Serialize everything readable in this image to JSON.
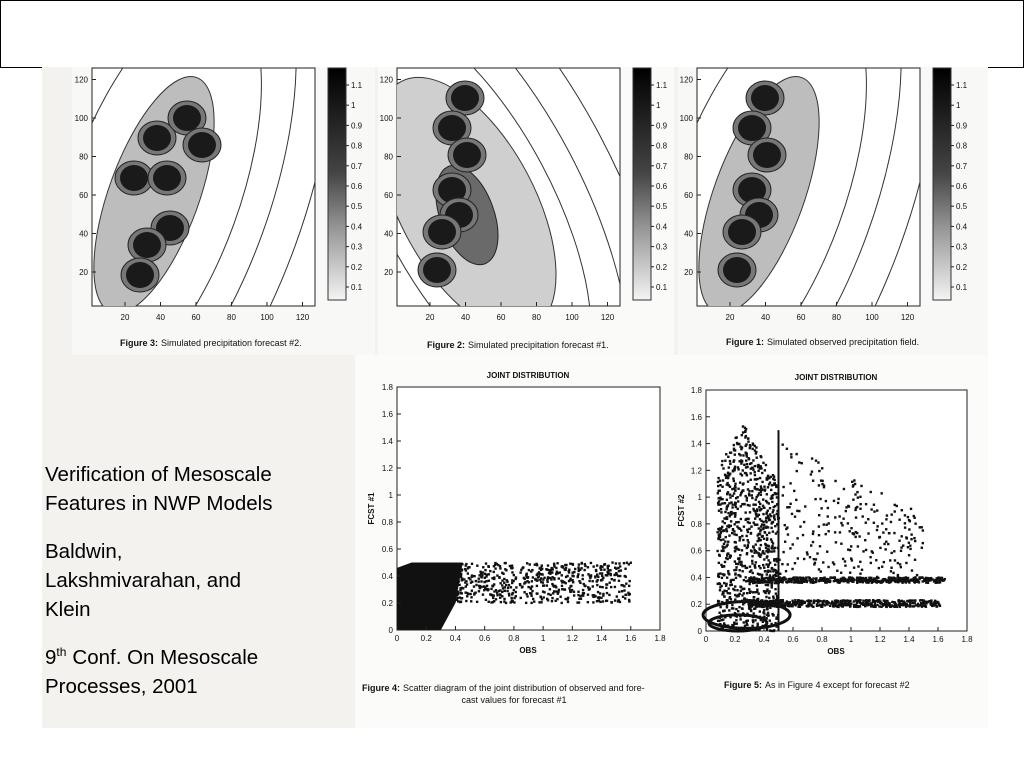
{
  "slide": {
    "title_lines": [
      "Verification of Mesoscale",
      "Features in NWP Models"
    ],
    "authors_lines": [
      "Baldwin,",
      "Lakshmivarahan, and",
      "Klein"
    ],
    "conference": {
      "number": "9",
      "superscript": "th",
      "first_line": "Conf. On Mesoscale",
      "second_line": "Processes, 2001"
    }
  },
  "contour_figures": [
    {
      "label": "Figure 3:",
      "caption": "Simulated precipitation forecast #2.",
      "xticks": [
        20,
        40,
        60,
        80,
        100,
        120
      ],
      "yticks": [
        20,
        40,
        60,
        80,
        100,
        120
      ],
      "colorbar_ticks": [
        1.1,
        1,
        0.9,
        0.8,
        0.7,
        0.6,
        0.5,
        0.4,
        0.3,
        0.2,
        0.1
      ]
    },
    {
      "label": "Figure 2:",
      "caption": "Simulated precipitation forecast #1.",
      "xticks": [
        20,
        40,
        60,
        80,
        100,
        120
      ],
      "yticks": [
        20,
        40,
        60,
        80,
        100,
        120
      ],
      "colorbar_ticks": [
        1.1,
        1,
        0.9,
        0.8,
        0.7,
        0.6,
        0.5,
        0.4,
        0.3,
        0.2,
        0.1
      ]
    },
    {
      "label": "Figure 1:",
      "caption": "Simulated observed precipitation field.",
      "xticks": [
        20,
        40,
        60,
        80,
        100,
        120
      ],
      "yticks": [
        20,
        40,
        60,
        80,
        100,
        120
      ],
      "colorbar_ticks": [
        1.1,
        1,
        0.9,
        0.8,
        0.7,
        0.6,
        0.5,
        0.4,
        0.3,
        0.2,
        0.1
      ]
    }
  ],
  "scatter_figures": [
    {
      "title": "JOINT DISTRIBUTION",
      "xlabel": "OBS",
      "ylabel": "FCST #1",
      "xticks": [
        0,
        0.2,
        0.4,
        0.6,
        0.8,
        1,
        1.2,
        1.4,
        1.6,
        1.8
      ],
      "yticks": [
        0,
        0.2,
        0.4,
        0.6,
        0.8,
        1,
        1.2,
        1.4,
        1.6,
        1.8
      ],
      "label": "Figure 4:",
      "caption_lines": [
        "Scatter diagram of the joint distribution of observed and fore-",
        "cast values for forecast #1"
      ]
    },
    {
      "title": "JOINT DISTRIBUTION",
      "xlabel": "OBS",
      "ylabel": "FCST #2",
      "xticks": [
        0,
        0.2,
        0.4,
        0.6,
        0.8,
        1,
        1.2,
        1.4,
        1.6,
        1.8
      ],
      "yticks": [
        0,
        0.2,
        0.4,
        0.6,
        0.8,
        1,
        1.2,
        1.4,
        1.6,
        1.8
      ],
      "label": "Figure 5:",
      "caption_lines": [
        "As in Figure 4 except for forecast #2"
      ]
    }
  ]
}
